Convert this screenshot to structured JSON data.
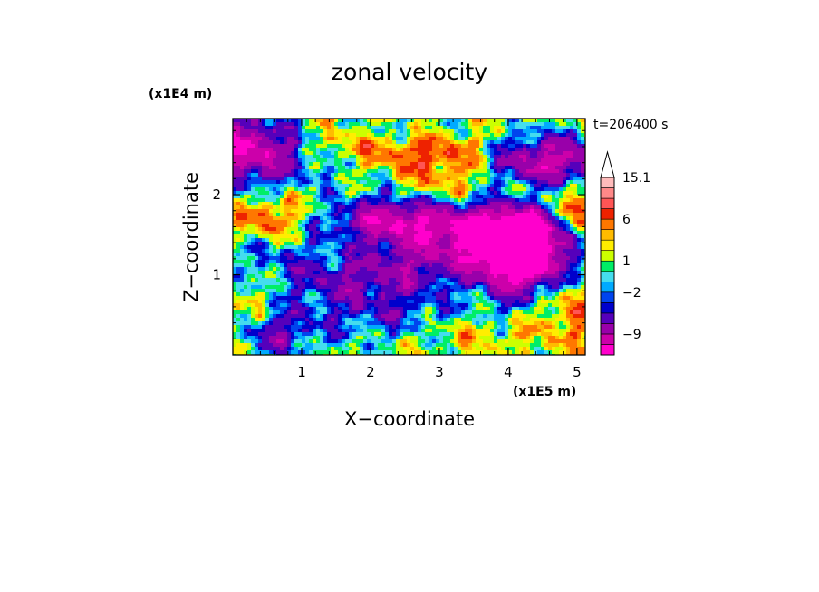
{
  "chart_data": {
    "type": "heatmap",
    "title": "zonal velocity",
    "xlabel": "X−coordinate",
    "ylabel": "Z−coordinate",
    "x_scale_label": "(x1E5 m)",
    "y_scale_label": "(x1E4 m)",
    "time_label": "t=206400 s",
    "xlim": [
      0,
      5.12
    ],
    "ylim": [
      0,
      2.95
    ],
    "x_ticks": [
      1,
      2,
      3,
      4,
      5
    ],
    "y_ticks": [
      1,
      2
    ],
    "x_tick_labels": [
      "1",
      "2",
      "3",
      "4",
      "5"
    ],
    "y_tick_labels": [
      "1",
      "2"
    ],
    "grid": false,
    "colorbar": {
      "placement": "right",
      "extend": "max",
      "levels": [
        -15,
        -12,
        -9,
        -6,
        -4,
        -3,
        -2,
        -1,
        0,
        1,
        2,
        3,
        4,
        6,
        8,
        10,
        12.5,
        15.1
      ],
      "colors": [
        "#ff00cc",
        "#cc00aa",
        "#9900aa",
        "#5500bb",
        "#0000cc",
        "#0044ee",
        "#00aaff",
        "#44ddee",
        "#00ee66",
        "#ccff00",
        "#ffee00",
        "#ffbb00",
        "#ff7700",
        "#ee2200",
        "#ff5555",
        "#ff8888",
        "#ffbbbb"
      ],
      "labelled_values": [
        "15.1",
        "6",
        "1",
        "−2",
        "−9"
      ]
    }
  }
}
